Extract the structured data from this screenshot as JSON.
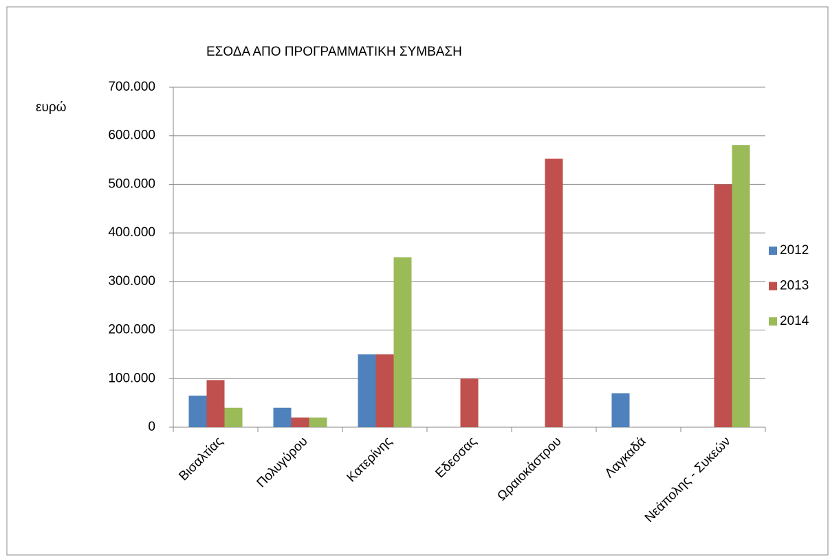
{
  "chart_data": {
    "type": "bar",
    "title": "ΕΣΟΔΑ ΑΠΟ ΠΡΟΓΡΑΜΜΑΤΙΚΗ ΣΥΜΒΑΣΗ",
    "y_label": "ευρώ",
    "categories": [
      "Βισαλτίας",
      "Πολυγύρου",
      "Κατερίνης",
      "Εδεσσας",
      "Ωραιοκάστρου",
      "Λαγκαδά",
      "Νεάπολης - Συκεών"
    ],
    "series": [
      {
        "name": "2012",
        "color": "#4f81bd",
        "values": [
          65000,
          40000,
          150000,
          null,
          null,
          70000,
          null
        ]
      },
      {
        "name": "2013",
        "color": "#c0504d",
        "values": [
          97000,
          20000,
          150000,
          100000,
          553000,
          null,
          500000
        ]
      },
      {
        "name": "2014",
        "color": "#9bbb59",
        "values": [
          40000,
          20000,
          350000,
          null,
          null,
          null,
          581000
        ]
      }
    ],
    "ylim": [
      0,
      700000
    ],
    "yticks": [
      0,
      {
        "value": 100000,
        "label": "100.000"
      },
      {
        "value": 200000,
        "label": "200.000"
      },
      {
        "value": 300000,
        "label": "300.000"
      },
      {
        "value": 400000,
        "label": "400.000"
      },
      {
        "value": 500000,
        "label": "500.000"
      },
      {
        "value": 600000,
        "label": "600.000"
      },
      {
        "value": 700000,
        "label": "700.000"
      }
    ],
    "grid": true,
    "legend": "right"
  }
}
